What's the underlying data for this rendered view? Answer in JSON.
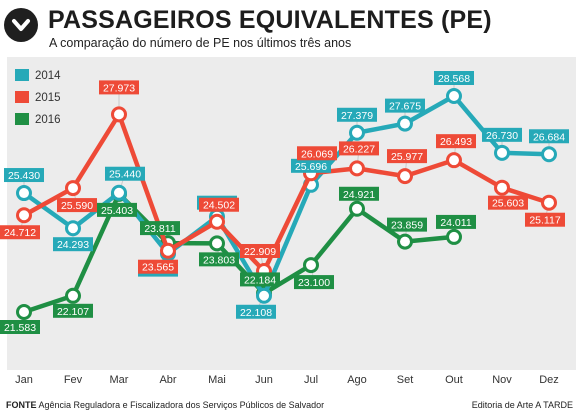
{
  "title": "PASSAGEIROS EQUIVALENTES (PE)",
  "subtitle": "A comparação do número de PE nos últimos três anos",
  "footer": {
    "source_label": "FONTE",
    "source_text": "Agência Reguladora e Fiscalizadora dos Serviços Públicos de Salvador",
    "credit": "Editoria de Arte A TARDE"
  },
  "icon": "chevron-down-circle-icon",
  "colors": {
    "2014": "#26a9b8",
    "2015": "#ee4a37",
    "2016": "#1f8f44",
    "panel": "#ececec"
  },
  "chart_data": {
    "type": "line",
    "categories": [
      "Jan",
      "Fev",
      "Mar",
      "Abr",
      "Mai",
      "Jun",
      "Jul",
      "Ago",
      "Set",
      "Out",
      "Nov",
      "Dez"
    ],
    "series": [
      {
        "name": "2014",
        "values": [
          25430,
          24293,
          25440,
          23471,
          24665,
          22108,
          25696,
          27379,
          27675,
          28568,
          26730,
          26684
        ],
        "labels": [
          "25.430",
          "24.293",
          "25.440",
          "23.471",
          "24.665",
          "22.108",
          "25.696",
          "27.379",
          "27.675",
          "28.568",
          "26.730",
          "26.684"
        ]
      },
      {
        "name": "2015",
        "values": [
          24712,
          25590,
          27973,
          23565,
          24502,
          22909,
          26069,
          26227,
          25977,
          26493,
          25603,
          25117
        ],
        "labels": [
          "24.712",
          "25.590",
          "27.973",
          "23.565",
          "24.502",
          "22.909",
          "26.069",
          "26.227",
          "25.977",
          "26.493",
          "25.603",
          "25.117"
        ]
      },
      {
        "name": "2016",
        "values": [
          21583,
          22107,
          25403,
          23811,
          23803,
          22184,
          23100,
          24921,
          23859,
          24011,
          null,
          null
        ],
        "labels": [
          "21.583",
          "22.107",
          "25.403",
          "23.811",
          "23.803",
          "22.184",
          "23.100",
          "24.921",
          "23.859",
          "24.011",
          null,
          null
        ]
      }
    ],
    "legend": [
      "2014",
      "2015",
      "2016"
    ],
    "legend_position": "top-left",
    "grid": false
  }
}
